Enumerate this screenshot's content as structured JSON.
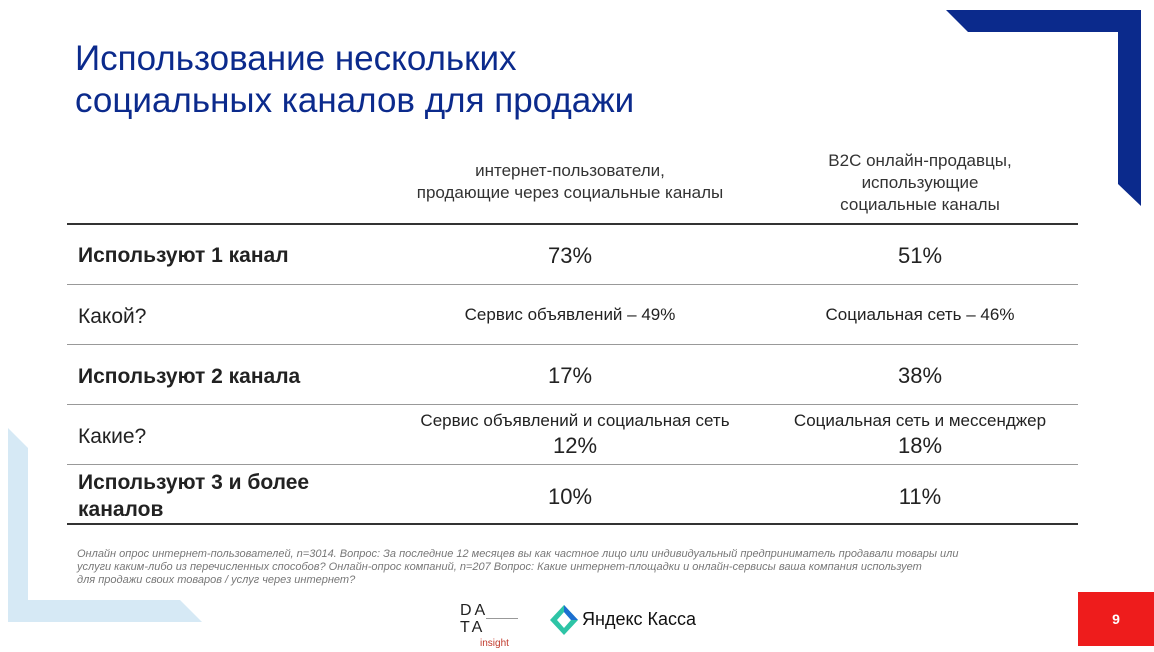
{
  "colors": {
    "title": "#0b2a8c",
    "accent_navy": "#0b2a8c",
    "accent_light": "#d6e9f5",
    "page_badge": "#ee1c1c"
  },
  "title": {
    "line1": "Использование нескольких",
    "line2": "социальных каналов для продажи"
  },
  "columns": [
    {
      "lines": [
        "интернет-пользователи,",
        "продающие через социальные каналы"
      ]
    },
    {
      "lines": [
        "B2C онлайн-продавцы,",
        "использующие",
        "социальные каналы"
      ]
    }
  ],
  "rows": [
    {
      "label": "Используют 1 канал",
      "c1": "73%",
      "c2": "51%"
    },
    {
      "label": "Какой?",
      "c1": "Сервис объявлений – 49%",
      "c2": "Социальная сеть – 46%"
    },
    {
      "label": "Используют 2 канала",
      "c1": "17%",
      "c2": "38%"
    },
    {
      "label": "Какие?",
      "c1_line1": "Сервис объявлений и социальная сеть",
      "c1_line2": "12%",
      "c2_line1": "Социальная сеть и мессенджер",
      "c2_line2": "18%"
    },
    {
      "label_line1": "Используют 3 и более",
      "label_line2": "каналов",
      "c1": "10%",
      "c2": "11%"
    }
  ],
  "footnote": {
    "line1": "Онлайн опрос интернет-пользователей, n=3014. Вопрос: За последние 12 месяцев вы как частное лицо или индивидуальный предприниматель продавали товары или",
    "line2": "услуги каким-либо из перечисленных способов? Онлайн-опрос компаний, n=207 Вопрос: Какие интернет-площадки и онлайн-сервисы ваша компания использует",
    "line3": "для продажи своих товаров / услуг через интернет?"
  },
  "logos": {
    "data_insight": {
      "row1": "DA",
      "row2": "TA",
      "sub": "insight"
    },
    "yandex": {
      "text": "Яндекс Касса",
      "icon": "yandex-kassa-icon"
    }
  },
  "page_number": "9"
}
